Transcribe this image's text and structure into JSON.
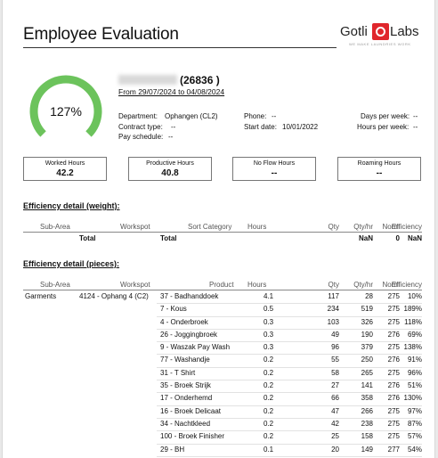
{
  "header": {
    "title": "Employee Evaluation",
    "logo": {
      "word1": "Gotli",
      "word2": "Labs",
      "tagline": "WE MAKE LAUNDRIES WORK"
    }
  },
  "gauge": {
    "value_text": "127%",
    "percent": 127,
    "color": "#6cc35c",
    "track_color": "#e0e0e0"
  },
  "employee": {
    "id_text": "(26836 )",
    "period": "From 29/07/2024 to 04/08/2024",
    "department_label": "Department:",
    "department_value": "Ophangen (CL2)",
    "contract_label": "Contract type:",
    "contract_value": "--",
    "schedule_label": "Pay schedule:",
    "schedule_value": "--",
    "phone_label": "Phone:",
    "phone_value": "--",
    "start_label": "Start date:",
    "start_value": "10/01/2022",
    "days_label": "Days per week:",
    "days_value": "--",
    "hours_label": "Hours per week:",
    "hours_value": "--"
  },
  "kpis": [
    {
      "label": "Worked Hours",
      "value": "42.2"
    },
    {
      "label": "Productive Hours",
      "value": "40.8"
    },
    {
      "label": "No Flow Hours",
      "value": "--"
    },
    {
      "label": "Roaming Hours",
      "value": "--"
    }
  ],
  "weight": {
    "title": "Efficiency detail (weight):",
    "columns": [
      "Sub-Area",
      "Workspot",
      "Sort Category",
      "Hours",
      "Qty",
      "Qty/hr",
      "Norm",
      "Efficiency"
    ],
    "total": {
      "subarea": "Total",
      "workspot": "Total",
      "qtyhr": "NaN",
      "norm": "0",
      "efficiency": "NaN"
    }
  },
  "pieces": {
    "title": "Efficiency detail (pieces):",
    "columns": [
      "Sub-Area",
      "Workspot",
      "Product",
      "Hours",
      "Qty",
      "Qty/hr",
      "Norm",
      "Efficiency"
    ],
    "subarea": "Garments",
    "workspot": "4124 - Ophang 4 (C2)",
    "rows": [
      {
        "product": "37 - Badhanddoek",
        "hours": "4.1",
        "qty": "117",
        "qtyhr": "28",
        "norm": "275",
        "eff": "10%"
      },
      {
        "product": "7 - Kous",
        "hours": "0.5",
        "qty": "234",
        "qtyhr": "519",
        "norm": "275",
        "eff": "189%"
      },
      {
        "product": "4 - Onderbroek",
        "hours": "0.3",
        "qty": "103",
        "qtyhr": "326",
        "norm": "275",
        "eff": "118%"
      },
      {
        "product": "26 - Joggingbroek",
        "hours": "0.3",
        "qty": "49",
        "qtyhr": "190",
        "norm": "276",
        "eff": "69%"
      },
      {
        "product": "9 - Waszak Pay Wash",
        "hours": "0.3",
        "qty": "96",
        "qtyhr": "379",
        "norm": "275",
        "eff": "138%"
      },
      {
        "product": "77 - Washandje",
        "hours": "0.2",
        "qty": "55",
        "qtyhr": "250",
        "norm": "276",
        "eff": "91%"
      },
      {
        "product": "31 - T Shirt",
        "hours": "0.2",
        "qty": "58",
        "qtyhr": "265",
        "norm": "275",
        "eff": "96%"
      },
      {
        "product": "35 - Broek Strijk",
        "hours": "0.2",
        "qty": "27",
        "qtyhr": "141",
        "norm": "276",
        "eff": "51%"
      },
      {
        "product": "17 - Onderhemd",
        "hours": "0.2",
        "qty": "66",
        "qtyhr": "358",
        "norm": "276",
        "eff": "130%"
      },
      {
        "product": "16 - Broek Delicaat",
        "hours": "0.2",
        "qty": "47",
        "qtyhr": "266",
        "norm": "275",
        "eff": "97%"
      },
      {
        "product": "34 - Nachtkleed",
        "hours": "0.2",
        "qty": "42",
        "qtyhr": "238",
        "norm": "275",
        "eff": "87%"
      },
      {
        "product": "100 - Broek Finisher",
        "hours": "0.2",
        "qty": "25",
        "qtyhr": "158",
        "norm": "275",
        "eff": "57%"
      },
      {
        "product": "29 - BH",
        "hours": "0.1",
        "qty": "20",
        "qtyhr": "149",
        "norm": "277",
        "eff": "54%"
      }
    ]
  }
}
